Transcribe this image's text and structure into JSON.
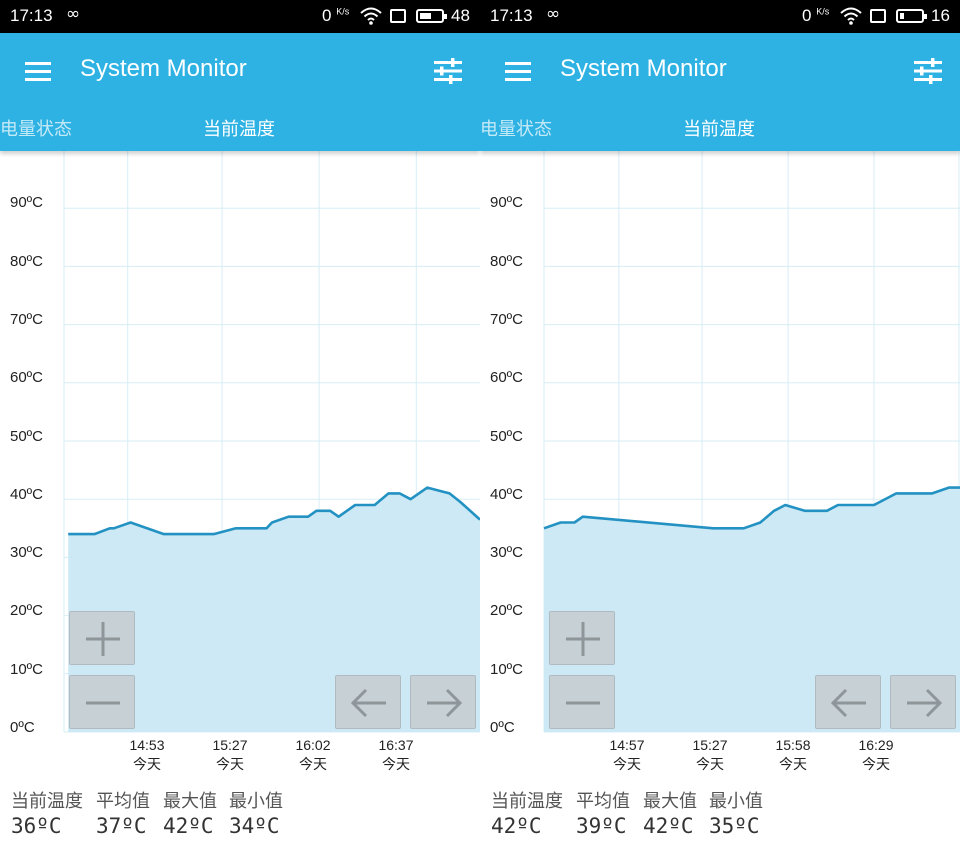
{
  "app": {
    "title": "System Monitor"
  },
  "panels": [
    {
      "status": {
        "time": "17:13",
        "link_symbol": "∞",
        "net": "0",
        "net_unit": "K/s",
        "battery": "48"
      },
      "tabs": {
        "inactive": "电量状态",
        "active": "当前温度"
      },
      "y_ticks": [
        "90ºC",
        "80ºC",
        "70ºC",
        "60ºC",
        "50ºC",
        "40ºC",
        "30ºC",
        "20ºC",
        "10ºC",
        "0ºC"
      ],
      "x_ticks": [
        {
          "time": "14:53",
          "day": "今天"
        },
        {
          "time": "15:27",
          "day": "今天"
        },
        {
          "time": "16:02",
          "day": "今天"
        },
        {
          "time": "16:37",
          "day": "今天"
        }
      ],
      "stats": {
        "labels": [
          "当前温度",
          "平均值",
          "最大值",
          "最小值"
        ],
        "values": [
          "36ºC",
          "37ºC",
          "42ºC",
          "34ºC"
        ]
      }
    },
    {
      "status": {
        "time": "17:13",
        "link_symbol": "∞",
        "net": "0",
        "net_unit": "K/s",
        "battery": "16"
      },
      "tabs": {
        "inactive": "电量状态",
        "active": "当前温度"
      },
      "y_ticks": [
        "90ºC",
        "80ºC",
        "70ºC",
        "60ºC",
        "50ºC",
        "40ºC",
        "30ºC",
        "20ºC",
        "10ºC",
        "0ºC"
      ],
      "x_ticks": [
        {
          "time": "14:57",
          "day": "今天"
        },
        {
          "time": "15:27",
          "day": "今天"
        },
        {
          "time": "15:58",
          "day": "今天"
        },
        {
          "time": "16:29",
          "day": "今天"
        }
      ],
      "stats": {
        "labels": [
          "当前温度",
          "平均值",
          "最大值",
          "最小值"
        ],
        "values": [
          "42ºC",
          "39ºC",
          "42ºC",
          "35ºC"
        ]
      }
    }
  ],
  "icons": {
    "menu": "menu-icon",
    "tune": "tune-icon",
    "zoom_in": "plus-icon",
    "zoom_out": "minus-icon",
    "prev": "arrow-left-icon",
    "next": "arrow-right-icon",
    "wifi": "wifi-icon",
    "sim": "sim-icon",
    "battery": "battery-icon"
  },
  "colors": {
    "appbar": "#2eb2e3",
    "line": "#2392c2",
    "area": "#cde9f5",
    "grid": "#d7edf6"
  },
  "chart_data": [
    {
      "type": "area",
      "ylim": [
        0,
        100
      ],
      "x_tick_labels": [
        "14:53",
        "15:27",
        "16:02",
        "16:37"
      ],
      "x_ticks_at": [
        14.883,
        15.45,
        16.033,
        16.617
      ],
      "xlim": [
        14.5,
        17.0
      ],
      "points": [
        [
          14.525,
          34
        ],
        [
          14.683,
          34
        ],
        [
          14.775,
          35
        ],
        [
          14.8,
          35
        ],
        [
          14.9,
          36
        ],
        [
          15.1,
          34
        ],
        [
          15.4,
          34
        ],
        [
          15.533,
          35
        ],
        [
          15.717,
          35
        ],
        [
          15.75,
          36
        ],
        [
          15.85,
          37
        ],
        [
          15.967,
          37
        ],
        [
          16.017,
          38
        ],
        [
          16.1,
          38
        ],
        [
          16.15,
          37
        ],
        [
          16.25,
          39
        ],
        [
          16.367,
          39
        ],
        [
          16.45,
          41
        ],
        [
          16.517,
          41
        ],
        [
          16.583,
          40
        ],
        [
          16.683,
          42
        ],
        [
          16.817,
          41
        ],
        [
          16.883,
          39.5
        ],
        [
          17.0,
          36.5
        ]
      ]
    },
    {
      "type": "area",
      "ylim": [
        0,
        100
      ],
      "x_tick_labels": [
        "14:57",
        "15:27",
        "15:58",
        "16:29"
      ],
      "x_ticks_at": [
        14.95,
        15.45,
        15.967,
        16.483
      ],
      "xlim": [
        14.5,
        17.0
      ],
      "points": [
        [
          14.5,
          35
        ],
        [
          14.6,
          36
        ],
        [
          14.683,
          36
        ],
        [
          14.733,
          37
        ],
        [
          15.517,
          35
        ],
        [
          15.7,
          35
        ],
        [
          15.8,
          36
        ],
        [
          15.883,
          38
        ],
        [
          15.95,
          39
        ],
        [
          16.067,
          38
        ],
        [
          16.2,
          38
        ],
        [
          16.267,
          39
        ],
        [
          16.483,
          39
        ],
        [
          16.617,
          41
        ],
        [
          16.833,
          41
        ],
        [
          16.933,
          42
        ],
        [
          17.0,
          42
        ]
      ]
    }
  ]
}
